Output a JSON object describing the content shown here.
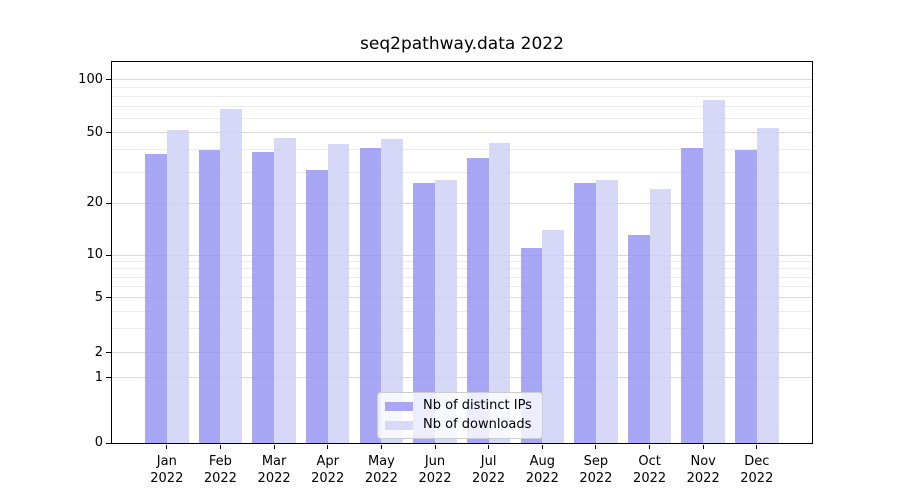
{
  "chart_data": {
    "type": "bar",
    "title": "seq2pathway.data 2022",
    "categories": [
      "Jan 2022",
      "Feb 2022",
      "Mar 2022",
      "Apr 2022",
      "May 2022",
      "Jun 2022",
      "Jul 2022",
      "Aug 2022",
      "Sep 2022",
      "Oct 2022",
      "Nov 2022",
      "Dec 2022"
    ],
    "series": [
      {
        "name": "Nb of distinct IPs",
        "color": "#a7a7f4",
        "fill": "rgba(145,145,242,0.8)",
        "values": [
          38,
          40,
          39,
          31,
          41,
          26,
          36,
          11,
          26,
          13,
          41,
          40
        ]
      },
      {
        "name": "Nb of downloads",
        "color": "#d8d8f8",
        "fill": "rgba(205,205,246,0.8)",
        "values": [
          52,
          68,
          47,
          43,
          46,
          27,
          44,
          14,
          27,
          24,
          77,
          53
        ]
      }
    ],
    "xlabel": "",
    "ylabel": "",
    "y_ticks": [
      100,
      50,
      20,
      10,
      5,
      2,
      1,
      0
    ],
    "y_minor_gridlines": [
      3,
      4,
      6,
      7,
      8,
      9,
      30,
      40,
      60,
      70,
      80,
      90
    ],
    "y_scale": "log-like",
    "ylim": [
      0,
      126
    ],
    "grid": "horizontal, major and minor, light gray",
    "legend_position": "bottom-center-inside"
  }
}
